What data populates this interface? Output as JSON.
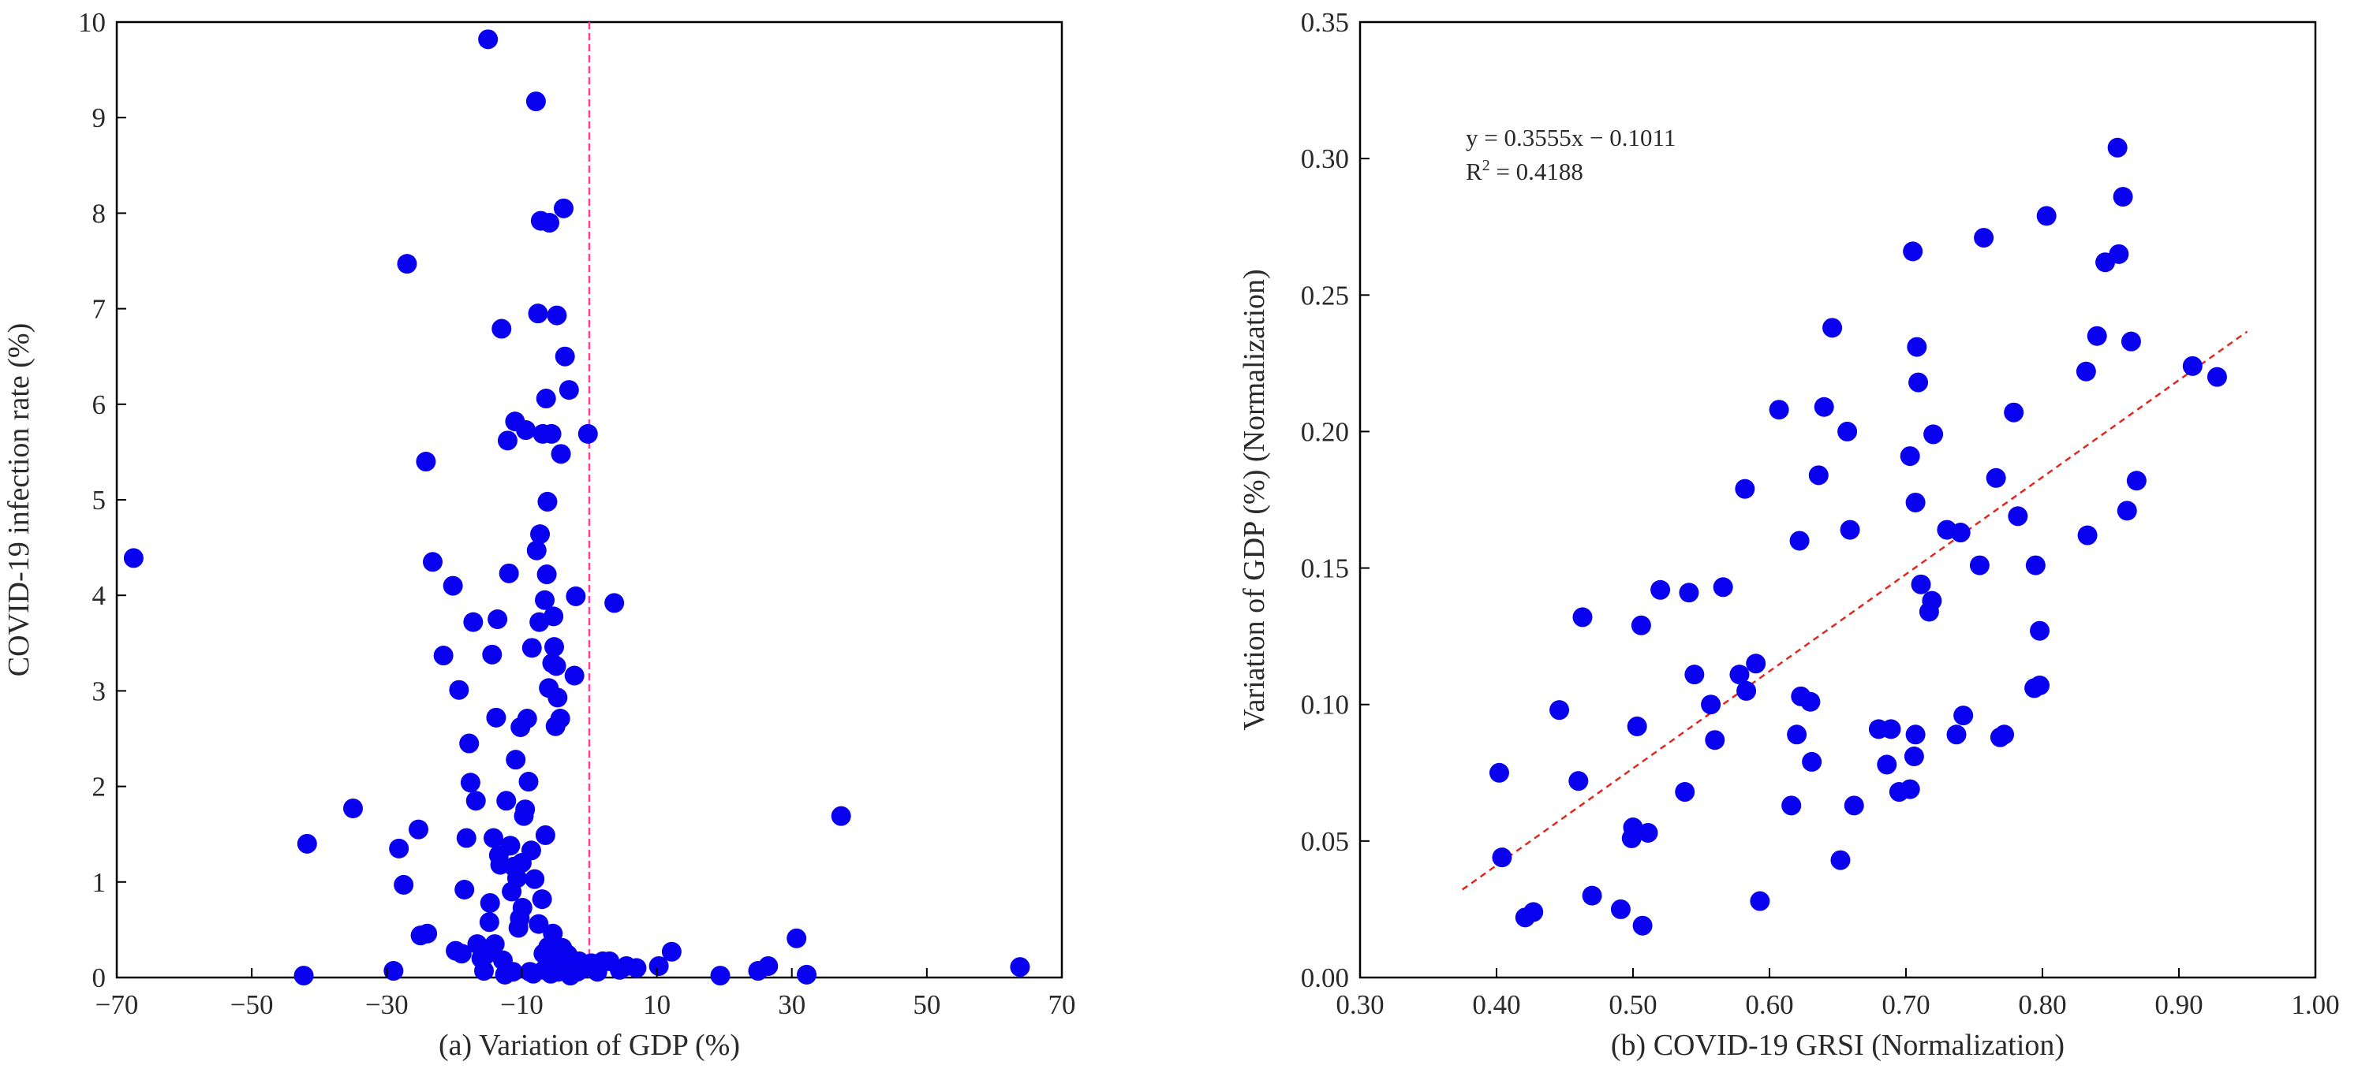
{
  "chart_data": [
    {
      "type": "scatter",
      "panel": "a",
      "xlabel": "(a) Variation of GDP (%)",
      "ylabel": "COVID-19 infection rate (%)",
      "xlim": [
        -70,
        70
      ],
      "ylim": [
        0,
        10
      ],
      "xticks": [
        -70,
        -50,
        -30,
        -10,
        10,
        30,
        50,
        70
      ],
      "xtick_labels": [
        "−70",
        "−50",
        "−30",
        "−10",
        "10",
        "30",
        "50",
        "70"
      ],
      "yticks": [
        0,
        1,
        2,
        3,
        4,
        5,
        6,
        7,
        8,
        9,
        10
      ],
      "ytick_labels": [
        "0",
        "1",
        "2",
        "3",
        "4",
        "5",
        "6",
        "7",
        "8",
        "9",
        "10"
      ],
      "reference_line": {
        "orientation": "vertical",
        "x": 0,
        "color": "#ff3ca0",
        "style": "dashed"
      },
      "point_color": "#0a00f0",
      "points": [
        [
          -67.5,
          4.39
        ],
        [
          -41.8,
          1.4
        ],
        [
          -42.3,
          0.02
        ],
        [
          -35,
          1.77
        ],
        [
          -29,
          0.07
        ],
        [
          -28.2,
          1.35
        ],
        [
          -27.5,
          0.97
        ],
        [
          -27,
          7.47
        ],
        [
          -25.3,
          1.55
        ],
        [
          -25,
          0.44
        ],
        [
          -24.2,
          5.4
        ],
        [
          -24,
          0.46
        ],
        [
          -23.2,
          4.35
        ],
        [
          -21.6,
          3.37
        ],
        [
          -20.2,
          4.1
        ],
        [
          -19.8,
          0.28
        ],
        [
          -19.3,
          3.01
        ],
        [
          -18.9,
          0.25
        ],
        [
          -18.5,
          0.92
        ],
        [
          -18.2,
          1.46
        ],
        [
          -17.8,
          2.45
        ],
        [
          -17.6,
          2.04
        ],
        [
          -17.2,
          3.72
        ],
        [
          -16.8,
          1.85
        ],
        [
          -16.6,
          0.35
        ],
        [
          -16,
          0.2
        ],
        [
          -15.6,
          0.07
        ],
        [
          -15.3,
          0.24
        ],
        [
          -15,
          9.82
        ],
        [
          -14.8,
          0.58
        ],
        [
          -14.7,
          0.78
        ],
        [
          -14.4,
          3.38
        ],
        [
          -14.2,
          1.46
        ],
        [
          -14,
          0.35
        ],
        [
          -13.8,
          2.72
        ],
        [
          -13.6,
          3.75
        ],
        [
          -13.4,
          1.28
        ],
        [
          -13.2,
          1.18
        ],
        [
          -13,
          6.79
        ],
        [
          -12.8,
          0.18
        ],
        [
          -12.5,
          0.03
        ],
        [
          -12.3,
          1.85
        ],
        [
          -12.1,
          5.62
        ],
        [
          -11.9,
          4.23
        ],
        [
          -11.7,
          1.38
        ],
        [
          -11.5,
          0.9
        ],
        [
          -11.3,
          0.06
        ],
        [
          -11.2,
          1.16
        ],
        [
          -11,
          5.82
        ],
        [
          -10.9,
          2.28
        ],
        [
          -10.7,
          1.04
        ],
        [
          -10.5,
          0.52
        ],
        [
          -10.3,
          0.62
        ],
        [
          -10.2,
          2.62
        ],
        [
          -10,
          1.2
        ],
        [
          -9.9,
          0.73
        ],
        [
          -9.7,
          1.69
        ],
        [
          -9.5,
          1.76
        ],
        [
          -9.4,
          5.73
        ],
        [
          -9.2,
          2.71
        ],
        [
          -9,
          2.05
        ],
        [
          -8.8,
          0.06
        ],
        [
          -8.6,
          1.33
        ],
        [
          -8.5,
          3.45
        ],
        [
          -8.3,
          0.04
        ],
        [
          -8.1,
          1.03
        ],
        [
          -7.9,
          9.17
        ],
        [
          -7.8,
          4.47
        ],
        [
          -7.6,
          6.95
        ],
        [
          -7.5,
          0.56
        ],
        [
          -7.4,
          3.72
        ],
        [
          -7.3,
          4.64
        ],
        [
          -7.2,
          7.92
        ],
        [
          -7,
          0.82
        ],
        [
          -6.9,
          5.69
        ],
        [
          -6.8,
          0.25
        ],
        [
          -6.7,
          0.08
        ],
        [
          -6.6,
          3.95
        ],
        [
          -6.5,
          1.49
        ],
        [
          -6.4,
          6.06
        ],
        [
          -6.3,
          4.22
        ],
        [
          -6.2,
          4.98
        ],
        [
          -6.1,
          0.32
        ],
        [
          -6,
          3.03
        ],
        [
          -5.9,
          7.9
        ],
        [
          -5.8,
          0.15
        ],
        [
          -5.7,
          0.04
        ],
        [
          -5.6,
          5.69
        ],
        [
          -5.5,
          3.29
        ],
        [
          -5.4,
          0.46
        ],
        [
          -5.3,
          3.78
        ],
        [
          -5.2,
          3.46
        ],
        [
          -5.1,
          0.3
        ],
        [
          -5,
          2.63
        ],
        [
          -4.9,
          3.26
        ],
        [
          -4.8,
          6.93
        ],
        [
          -4.7,
          2.93
        ],
        [
          -4.6,
          0.06
        ],
        [
          -4.5,
          0.19
        ],
        [
          -4.3,
          2.71
        ],
        [
          -4.2,
          5.48
        ],
        [
          -4,
          0.31
        ],
        [
          -3.8,
          8.05
        ],
        [
          -3.6,
          6.5
        ],
        [
          -3.4,
          0.07
        ],
        [
          -3.2,
          0.24
        ],
        [
          -3,
          6.15
        ],
        [
          -2.8,
          0.02
        ],
        [
          -2.5,
          0.14
        ],
        [
          -2.2,
          3.16
        ],
        [
          -2,
          3.99
        ],
        [
          -1.8,
          0.06
        ],
        [
          -1.5,
          0.17
        ],
        [
          -1,
          0.09
        ],
        [
          0.3,
          0.15
        ],
        [
          -0.2,
          5.69
        ],
        [
          1.2,
          0.06
        ],
        [
          2,
          0.17
        ],
        [
          3,
          0.17
        ],
        [
          3.7,
          3.92
        ],
        [
          4.5,
          0.08
        ],
        [
          5.5,
          0.12
        ],
        [
          7,
          0.1
        ],
        [
          10.3,
          0.12
        ],
        [
          12.2,
          0.27
        ],
        [
          19.4,
          0.02
        ],
        [
          25,
          0.07
        ],
        [
          26.5,
          0.12
        ],
        [
          30.7,
          0.41
        ],
        [
          32.2,
          0.03
        ],
        [
          37.3,
          1.69
        ],
        [
          63.8,
          0.11
        ]
      ]
    },
    {
      "type": "scatter",
      "panel": "b",
      "xlabel": "(b) COVID-19 GRSI (Normalization)",
      "ylabel": "Variation of GDP (%) (Normalization)",
      "xlim": [
        0.3,
        1.0
      ],
      "ylim": [
        0.0,
        0.35
      ],
      "xticks": [
        0.3,
        0.4,
        0.5,
        0.6,
        0.7,
        0.8,
        0.9,
        1.0
      ],
      "xtick_labels": [
        "0.30",
        "0.40",
        "0.50",
        "0.60",
        "0.70",
        "0.80",
        "0.90",
        "1.00"
      ],
      "yticks": [
        0,
        0.05,
        0.1,
        0.15,
        0.2,
        0.25,
        0.3,
        0.35
      ],
      "ytick_labels": [
        "0.00",
        "0.05",
        "0.10",
        "0.15",
        "0.20",
        "0.25",
        "0.30",
        "0.35"
      ],
      "equation": "y = 0.3555x − 0.1011",
      "r_squared_prefix": "R",
      "r_squared_exp": "2",
      "r_squared_value": " = 0.4188",
      "trendline": {
        "slope": 0.3555,
        "intercept": -0.1011,
        "x_start": 0.375,
        "x_end": 0.95,
        "color": "#e0281e",
        "style": "dotted"
      },
      "point_color": "#0a00f0",
      "points": [
        [
          0.402,
          0.075
        ],
        [
          0.404,
          0.044
        ],
        [
          0.421,
          0.022
        ],
        [
          0.427,
          0.024
        ],
        [
          0.446,
          0.098
        ],
        [
          0.46,
          0.072
        ],
        [
          0.463,
          0.132
        ],
        [
          0.47,
          0.03
        ],
        [
          0.491,
          0.025
        ],
        [
          0.499,
          0.051
        ],
        [
          0.5,
          0.055
        ],
        [
          0.503,
          0.092
        ],
        [
          0.506,
          0.129
        ],
        [
          0.507,
          0.019
        ],
        [
          0.511,
          0.053
        ],
        [
          0.52,
          0.142
        ],
        [
          0.538,
          0.068
        ],
        [
          0.541,
          0.141
        ],
        [
          0.545,
          0.111
        ],
        [
          0.557,
          0.1
        ],
        [
          0.56,
          0.087
        ],
        [
          0.566,
          0.143
        ],
        [
          0.578,
          0.111
        ],
        [
          0.582,
          0.179
        ],
        [
          0.583,
          0.105
        ],
        [
          0.59,
          0.115
        ],
        [
          0.593,
          0.028
        ],
        [
          0.607,
          0.208
        ],
        [
          0.616,
          0.063
        ],
        [
          0.62,
          0.089
        ],
        [
          0.622,
          0.16
        ],
        [
          0.623,
          0.103
        ],
        [
          0.631,
          0.079
        ],
        [
          0.63,
          0.101
        ],
        [
          0.636,
          0.184
        ],
        [
          0.64,
          0.209
        ],
        [
          0.646,
          0.238
        ],
        [
          0.652,
          0.043
        ],
        [
          0.657,
          0.2
        ],
        [
          0.659,
          0.164
        ],
        [
          0.662,
          0.063
        ],
        [
          0.68,
          0.091
        ],
        [
          0.686,
          0.078
        ],
        [
          0.689,
          0.091
        ],
        [
          0.695,
          0.068
        ],
        [
          0.703,
          0.191
        ],
        [
          0.703,
          0.069
        ],
        [
          0.705,
          0.266
        ],
        [
          0.707,
          0.089
        ],
        [
          0.707,
          0.174
        ],
        [
          0.706,
          0.081
        ],
        [
          0.708,
          0.231
        ],
        [
          0.709,
          0.218
        ],
        [
          0.711,
          0.144
        ],
        [
          0.717,
          0.134
        ],
        [
          0.719,
          0.138
        ],
        [
          0.72,
          0.199
        ],
        [
          0.73,
          0.164
        ],
        [
          0.737,
          0.089
        ],
        [
          0.74,
          0.163
        ],
        [
          0.742,
          0.096
        ],
        [
          0.754,
          0.151
        ],
        [
          0.757,
          0.271
        ],
        [
          0.766,
          0.183
        ],
        [
          0.769,
          0.088
        ],
        [
          0.772,
          0.089
        ],
        [
          0.779,
          0.207
        ],
        [
          0.782,
          0.169
        ],
        [
          0.794,
          0.106
        ],
        [
          0.795,
          0.151
        ],
        [
          0.798,
          0.107
        ],
        [
          0.798,
          0.127
        ],
        [
          0.803,
          0.279
        ],
        [
          0.832,
          0.222
        ],
        [
          0.833,
          0.162
        ],
        [
          0.84,
          0.235
        ],
        [
          0.846,
          0.262
        ],
        [
          0.855,
          0.304
        ],
        [
          0.856,
          0.265
        ],
        [
          0.859,
          0.286
        ],
        [
          0.862,
          0.171
        ],
        [
          0.865,
          0.233
        ],
        [
          0.869,
          0.182
        ],
        [
          0.91,
          0.224
        ],
        [
          0.928,
          0.22
        ]
      ]
    }
  ]
}
